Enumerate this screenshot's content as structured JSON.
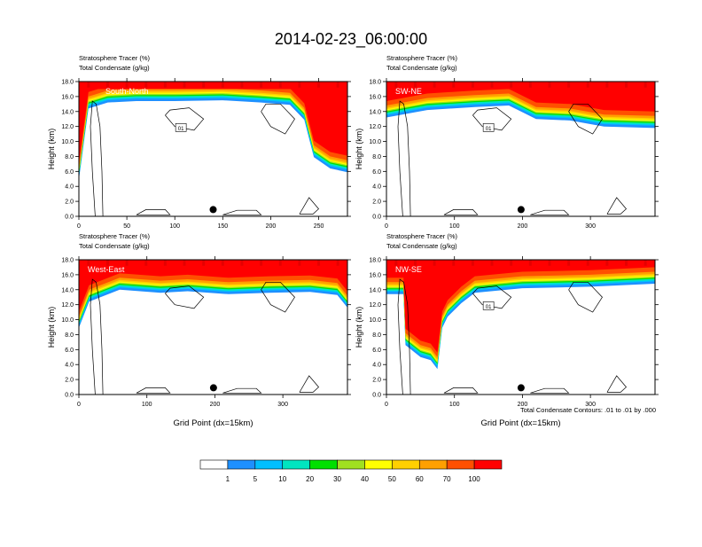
{
  "title": "2014-02-23_06:00:00",
  "panel_header": {
    "line1_name": "Stratosphere Tracer",
    "line1_unit": "(%)",
    "line2_name": "Total Condensate",
    "line2_unit": "(g/kg)"
  },
  "footnote": "Total Condensate Contours: .01 to .01 by .000",
  "colorbar": {
    "colors": [
      "#ffffff",
      "#1e90ff",
      "#00bfff",
      "#00e5c0",
      "#00e000",
      "#a0e020",
      "#ffff00",
      "#ffd000",
      "#ffa000",
      "#ff5000",
      "#ff0000"
    ],
    "labels": [
      "1",
      "5",
      "10",
      "20",
      "30",
      "40",
      "50",
      "60",
      "70",
      "100"
    ]
  },
  "chart_data": [
    {
      "type": "heatmap",
      "panel": "South-North",
      "xlabel": "",
      "ylabel": "Height (km)",
      "xlim": [
        0,
        280
      ],
      "ylim": [
        0,
        18
      ],
      "xticks": [
        "0",
        "50",
        "100",
        "150",
        "200",
        "250"
      ],
      "yticks": [
        "0.0",
        "2.0",
        "4.0",
        "6.0",
        "8.0",
        "10.0",
        "12.0",
        "14.0",
        "16.0",
        "18.0"
      ],
      "contour_label": "01",
      "marker_x": 140,
      "tracer_base_km": [
        [
          0,
          5.5
        ],
        [
          10,
          15.0
        ],
        [
          30,
          15.8
        ],
        [
          60,
          16.0
        ],
        [
          100,
          16.0
        ],
        [
          150,
          16.1
        ],
        [
          190,
          15.8
        ],
        [
          220,
          15.5
        ],
        [
          235,
          13.5
        ],
        [
          245,
          8.5
        ],
        [
          262,
          7.0
        ],
        [
          280,
          6.5
        ]
      ]
    },
    {
      "type": "heatmap",
      "panel": "SW-NE",
      "xlabel": "",
      "ylabel": "Height (km)",
      "xlim": [
        0,
        395
      ],
      "ylim": [
        0,
        18
      ],
      "xticks": [
        "0",
        "100",
        "200",
        "300"
      ],
      "yticks": [
        "0.0",
        "2.0",
        "4.0",
        "6.0",
        "8.0",
        "10.0",
        "12.0",
        "14.0",
        "16.0",
        "18.0"
      ],
      "contour_label": "01",
      "marker_x": 198,
      "tracer_base_km": [
        [
          0,
          13.8
        ],
        [
          60,
          14.8
        ],
        [
          130,
          15.2
        ],
        [
          180,
          15.4
        ],
        [
          220,
          13.6
        ],
        [
          270,
          13.4
        ],
        [
          320,
          12.6
        ],
        [
          395,
          12.4
        ]
      ]
    },
    {
      "type": "heatmap",
      "panel": "West-East",
      "xlabel": "Grid Point (dx=15km)",
      "ylabel": "Height (km)",
      "xlim": [
        0,
        395
      ],
      "ylim": [
        0,
        18
      ],
      "xticks": [
        "0",
        "100",
        "200",
        "300"
      ],
      "yticks": [
        "0.0",
        "2.0",
        "4.0",
        "6.0",
        "8.0",
        "10.0",
        "12.0",
        "14.0",
        "16.0",
        "18.0"
      ],
      "contour_label": "",
      "marker_x": 198,
      "tracer_base_km": [
        [
          0,
          9.5
        ],
        [
          15,
          13.0
        ],
        [
          60,
          14.6
        ],
        [
          120,
          14.2
        ],
        [
          160,
          14.4
        ],
        [
          220,
          14.0
        ],
        [
          280,
          14.2
        ],
        [
          340,
          14.3
        ],
        [
          380,
          13.9
        ],
        [
          395,
          12.2
        ]
      ]
    },
    {
      "type": "heatmap",
      "panel": "NW-SE",
      "xlabel": "Grid Point (dx=15km)",
      "ylabel": "Height (km)",
      "xlim": [
        0,
        395
      ],
      "ylim": [
        0,
        18
      ],
      "xticks": [
        "0",
        "100",
        "200",
        "300"
      ],
      "yticks": [
        "0.0",
        "2.0",
        "4.0",
        "6.0",
        "8.0",
        "10.0",
        "12.0",
        "14.0",
        "16.0",
        "18.0"
      ],
      "contour_label": "01",
      "marker_x": 198,
      "tracer_base_km": [
        [
          0,
          14.0
        ],
        [
          25,
          14.0
        ],
        [
          28,
          7.2
        ],
        [
          50,
          5.6
        ],
        [
          65,
          5.2
        ],
        [
          75,
          4.0
        ],
        [
          82,
          9.5
        ],
        [
          90,
          11.0
        ],
        [
          110,
          12.8
        ],
        [
          130,
          14.2
        ],
        [
          200,
          14.8
        ],
        [
          300,
          15.0
        ],
        [
          395,
          15.4
        ]
      ]
    }
  ]
}
